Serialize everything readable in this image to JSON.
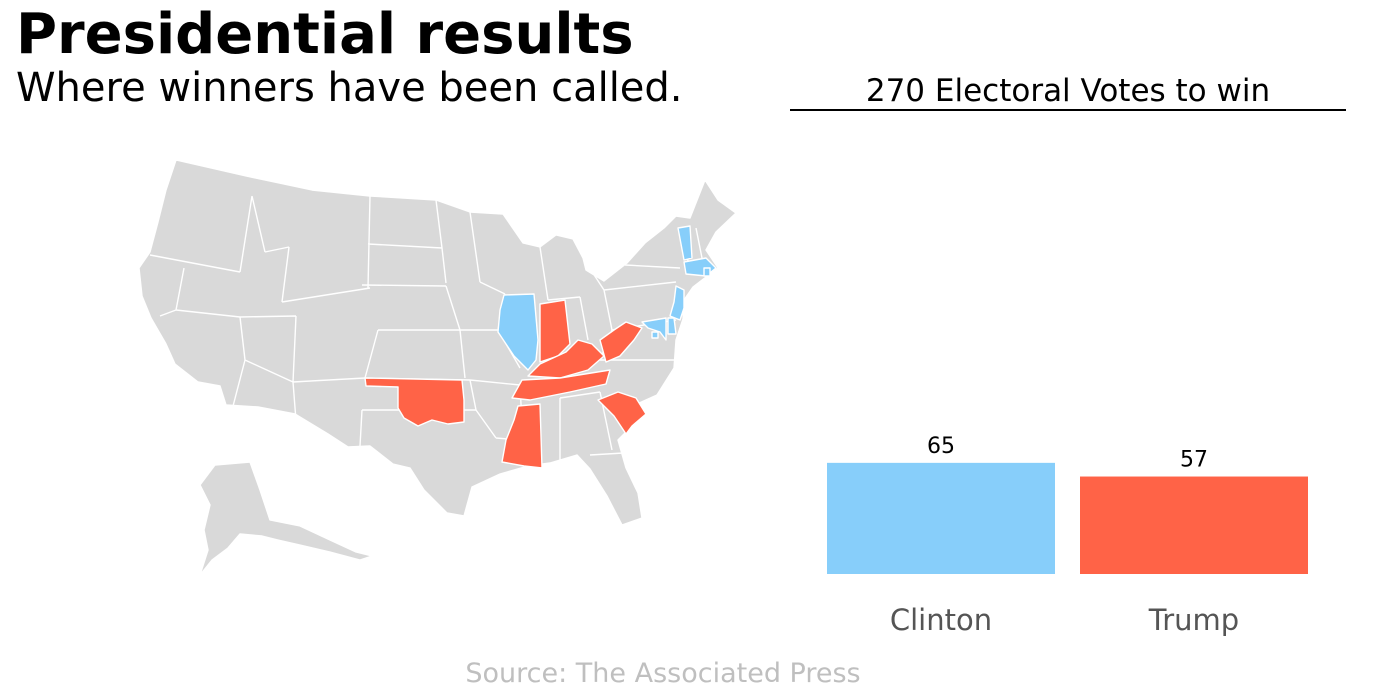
{
  "title": "Presidential results",
  "subtitle": "Where winners have been called.",
  "ev_header": "270 Electoral Votes to win",
  "source": "Source: The Associated Press",
  "colors": {
    "clinton": "#87cefa",
    "trump": "#ff6347",
    "uncalled": "#d9d9d9",
    "state_border": "#ffffff",
    "label": "#555555",
    "source": "#bfbfbf"
  },
  "map": {
    "states_called_clinton": [
      "VT",
      "MA",
      "NJ",
      "DE",
      "MD",
      "DC",
      "IL",
      "RI"
    ],
    "states_called_trump": [
      "IN",
      "KY",
      "WV",
      "TN",
      "MS",
      "OK",
      "SC"
    ]
  },
  "chart_data": {
    "type": "bar",
    "categories": [
      "Clinton",
      "Trump"
    ],
    "values": [
      65,
      57
    ],
    "title": "270 Electoral Votes to win",
    "xlabel": "",
    "ylabel": "",
    "ylim": [
      0,
      270
    ],
    "grid": false,
    "legend": "none",
    "data_labels": [
      "65",
      "57"
    ]
  }
}
